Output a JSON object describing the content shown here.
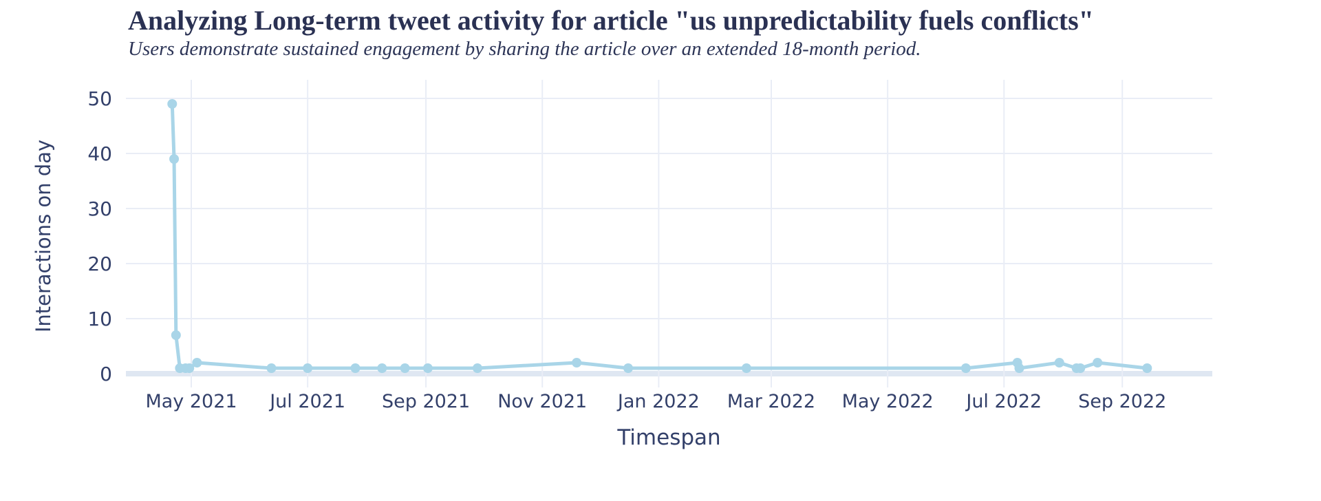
{
  "header": {
    "title": "Analyzing Long-term tweet activity for article \"us unpredictability fuels conflicts\"",
    "subtitle": "Users demonstrate sustained engagement by sharing the article over an extended 18-month period."
  },
  "chart_data": {
    "type": "line",
    "title": "Analyzing Long-term tweet activity for article \"us unpredictability fuels conflicts\"",
    "subtitle": "Users demonstrate sustained engagement by sharing the article over an extended 18-month period.",
    "xlabel": "Timespan",
    "ylabel": "Interactions on day",
    "ylim": [
      0,
      50
    ],
    "y_ticks": [
      0,
      10,
      20,
      30,
      40,
      50
    ],
    "x_ticks": [
      {
        "label": "May 2021",
        "date": "2021-05-01"
      },
      {
        "label": "Jul 2021",
        "date": "2021-07-01"
      },
      {
        "label": "Sep 2021",
        "date": "2021-09-01"
      },
      {
        "label": "Nov 2021",
        "date": "2021-11-01"
      },
      {
        "label": "Jan 2022",
        "date": "2022-01-01"
      },
      {
        "label": "Mar 2022",
        "date": "2022-03-01"
      },
      {
        "label": "May 2022",
        "date": "2022-05-01"
      },
      {
        "label": "Jul 2022",
        "date": "2022-07-01"
      },
      {
        "label": "Sep 2022",
        "date": "2022-09-01"
      }
    ],
    "grid": true,
    "legend": false,
    "series": [
      {
        "name": "interactions-on-day",
        "points": [
          {
            "date": "2021-04-21",
            "value": 49
          },
          {
            "date": "2021-04-22",
            "value": 39
          },
          {
            "date": "2021-04-23",
            "value": 7
          },
          {
            "date": "2021-04-25",
            "value": 1
          },
          {
            "date": "2021-04-28",
            "value": 1
          },
          {
            "date": "2021-04-30",
            "value": 1
          },
          {
            "date": "2021-05-04",
            "value": 2
          },
          {
            "date": "2021-06-12",
            "value": 1
          },
          {
            "date": "2021-07-01",
            "value": 1
          },
          {
            "date": "2021-07-26",
            "value": 1
          },
          {
            "date": "2021-08-09",
            "value": 1
          },
          {
            "date": "2021-08-21",
            "value": 1
          },
          {
            "date": "2021-09-02",
            "value": 1
          },
          {
            "date": "2021-09-28",
            "value": 1
          },
          {
            "date": "2021-11-19",
            "value": 2
          },
          {
            "date": "2021-12-16",
            "value": 1
          },
          {
            "date": "2022-02-16",
            "value": 1
          },
          {
            "date": "2022-06-11",
            "value": 1
          },
          {
            "date": "2022-07-08",
            "value": 2
          },
          {
            "date": "2022-07-09",
            "value": 1
          },
          {
            "date": "2022-07-30",
            "value": 2
          },
          {
            "date": "2022-08-08",
            "value": 1
          },
          {
            "date": "2022-08-10",
            "value": 1
          },
          {
            "date": "2022-08-19",
            "value": 2
          },
          {
            "date": "2022-09-14",
            "value": 1
          }
        ]
      }
    ]
  },
  "colors": {
    "line": "#a9d5e8",
    "marker": "#a9d5e8",
    "grid": "#e9edf6",
    "zero_line": "#dfe7f2",
    "title_text": "#2a3153",
    "axis_text": "#33406a",
    "background": "#ffffff"
  }
}
